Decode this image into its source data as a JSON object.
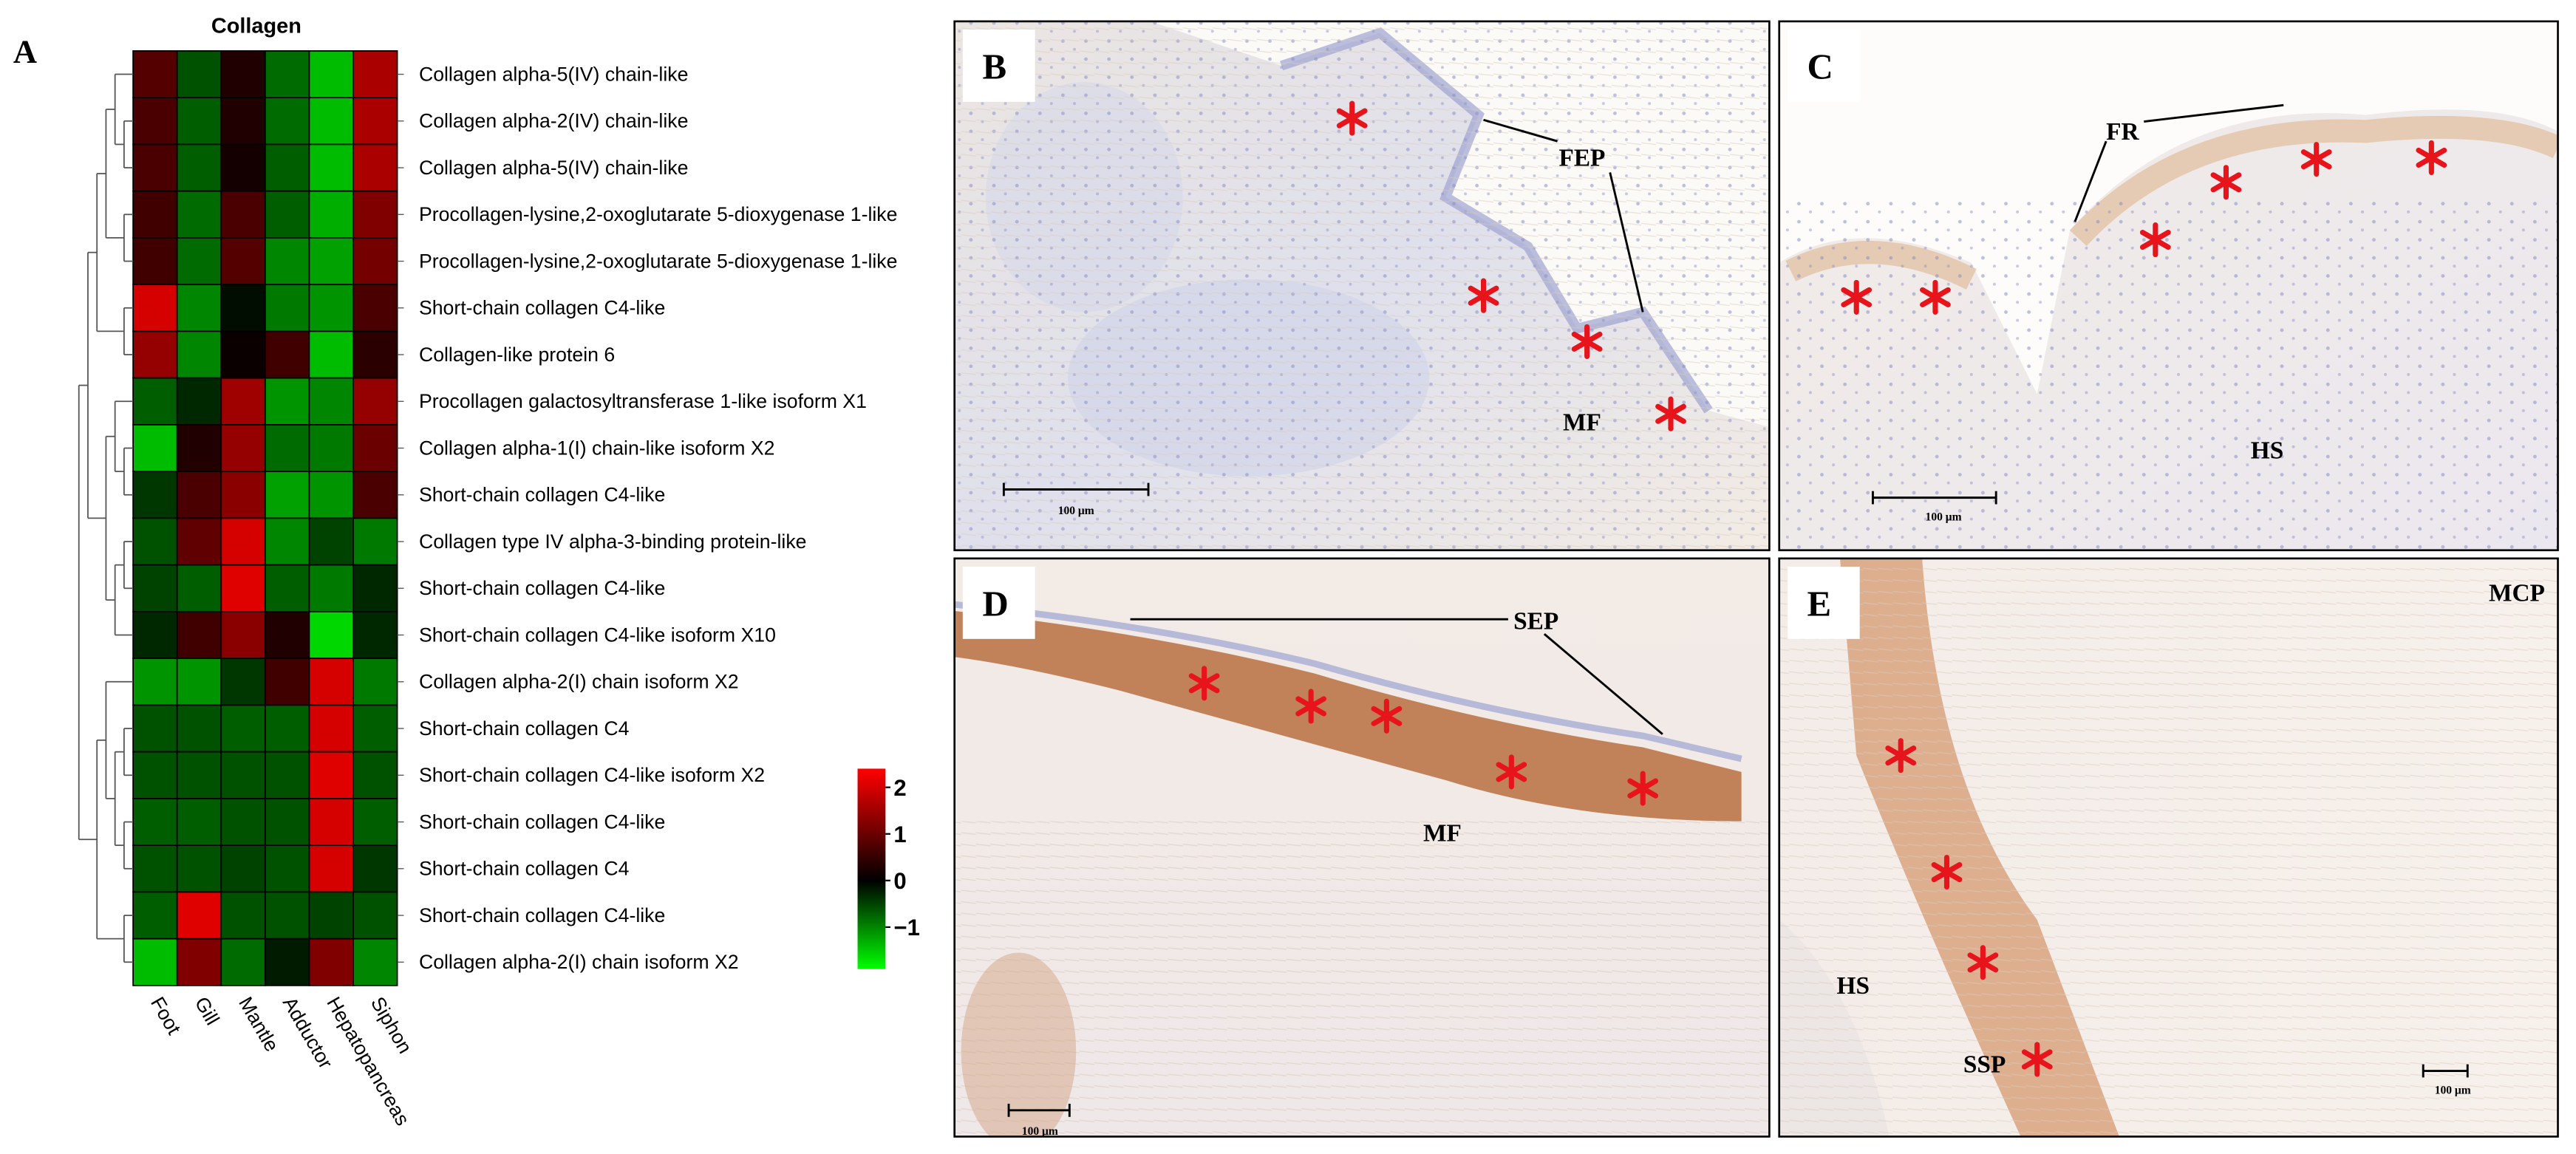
{
  "chart_data": {
    "type": "heatmap",
    "panel_label": "A",
    "title": "Collagen",
    "rows": [
      "Collagen alpha-5(IV) chain-like",
      "Collagen alpha-2(IV) chain-like",
      "Collagen alpha-5(IV) chain-like",
      "Procollagen-lysine,2-oxoglutarate 5-dioxygenase 1-like",
      "Procollagen-lysine,2-oxoglutarate 5-dioxygenase 1-like",
      "Short-chain collagen C4-like",
      "Collagen-like protein 6",
      "Procollagen galactosyltransferase 1-like isoform X1",
      "Collagen alpha-1(I) chain-like isoform X2",
      "Short-chain collagen C4-like",
      "Collagen type IV alpha-3-binding protein-like",
      "Short-chain collagen C4-like",
      "Short-chain collagen C4-like isoform X10",
      "Collagen alpha-2(I) chain isoform X2",
      "Short-chain collagen C4",
      "Short-chain collagen C4-like isoform X2",
      "Short-chain collagen C4-like",
      "Short-chain collagen C4",
      "Short-chain collagen C4-like",
      "Collagen alpha-2(I) chain isoform X2"
    ],
    "columns": [
      "Foot",
      "Gill",
      "Mantle",
      "Adductor",
      "Hepatopancreas",
      "Siphon"
    ],
    "values": [
      [
        0.8,
        -0.6,
        0.3,
        -0.8,
        -1.4,
        1.6
      ],
      [
        0.7,
        -0.7,
        0.3,
        -0.8,
        -1.4,
        1.6
      ],
      [
        0.7,
        -0.7,
        0.2,
        -0.7,
        -1.4,
        1.6
      ],
      [
        0.6,
        -0.8,
        0.7,
        -0.7,
        -1.3,
        1.2
      ],
      [
        0.6,
        -0.8,
        0.8,
        -1.0,
        -1.2,
        1.1
      ],
      [
        2.0,
        -1.0,
        -0.1,
        -0.9,
        -1.1,
        0.7
      ],
      [
        1.4,
        -1.0,
        0.1,
        0.6,
        -1.4,
        0.4
      ],
      [
        -0.7,
        -0.3,
        1.5,
        -1.1,
        -1.0,
        1.4
      ],
      [
        -1.4,
        0.3,
        1.4,
        -0.8,
        -0.9,
        1.0
      ],
      [
        -0.4,
        0.7,
        1.3,
        -1.2,
        -1.1,
        0.7
      ],
      [
        -0.6,
        0.9,
        2.0,
        -1.0,
        -0.5,
        -0.9
      ],
      [
        -0.5,
        -0.7,
        2.1,
        -0.7,
        -0.9,
        -0.3
      ],
      [
        -0.3,
        0.6,
        1.3,
        0.3,
        -1.6,
        -0.3
      ],
      [
        -1.1,
        -1.1,
        -0.4,
        0.6,
        2.0,
        -0.9
      ],
      [
        -0.6,
        -0.6,
        -0.7,
        -0.7,
        2.0,
        -0.7
      ],
      [
        -0.6,
        -0.6,
        -0.6,
        -0.6,
        2.1,
        -0.6
      ],
      [
        -0.7,
        -0.7,
        -0.6,
        -0.6,
        2.0,
        -0.7
      ],
      [
        -0.6,
        -0.6,
        -0.5,
        -0.6,
        2.0,
        -0.4
      ],
      [
        -0.7,
        2.1,
        -0.6,
        -0.6,
        -0.5,
        -0.6
      ],
      [
        -1.4,
        1.2,
        -0.8,
        -0.2,
        1.2,
        -1.0
      ]
    ],
    "colormap": [
      "#00ff00",
      "#000000",
      "#ff0000"
    ],
    "clim": [
      -1.9,
      2.4
    ],
    "colorbar_ticks": [
      2,
      1,
      0,
      {
        "value": -1,
        "label": "−1"
      }
    ]
  },
  "images": [
    {
      "label": "B",
      "annotations": [
        "FEP",
        "MF"
      ],
      "scale_bar": "100 μm"
    },
    {
      "label": "C",
      "annotations": [
        "FR",
        "HS"
      ],
      "scale_bar": "100 μm"
    },
    {
      "label": "D",
      "annotations": [
        "SEP",
        "MF"
      ],
      "scale_bar": "100 μm"
    },
    {
      "label": "E",
      "annotations": [
        "MCP",
        "HS",
        "SSP"
      ],
      "scale_bar": "100 μm"
    }
  ]
}
